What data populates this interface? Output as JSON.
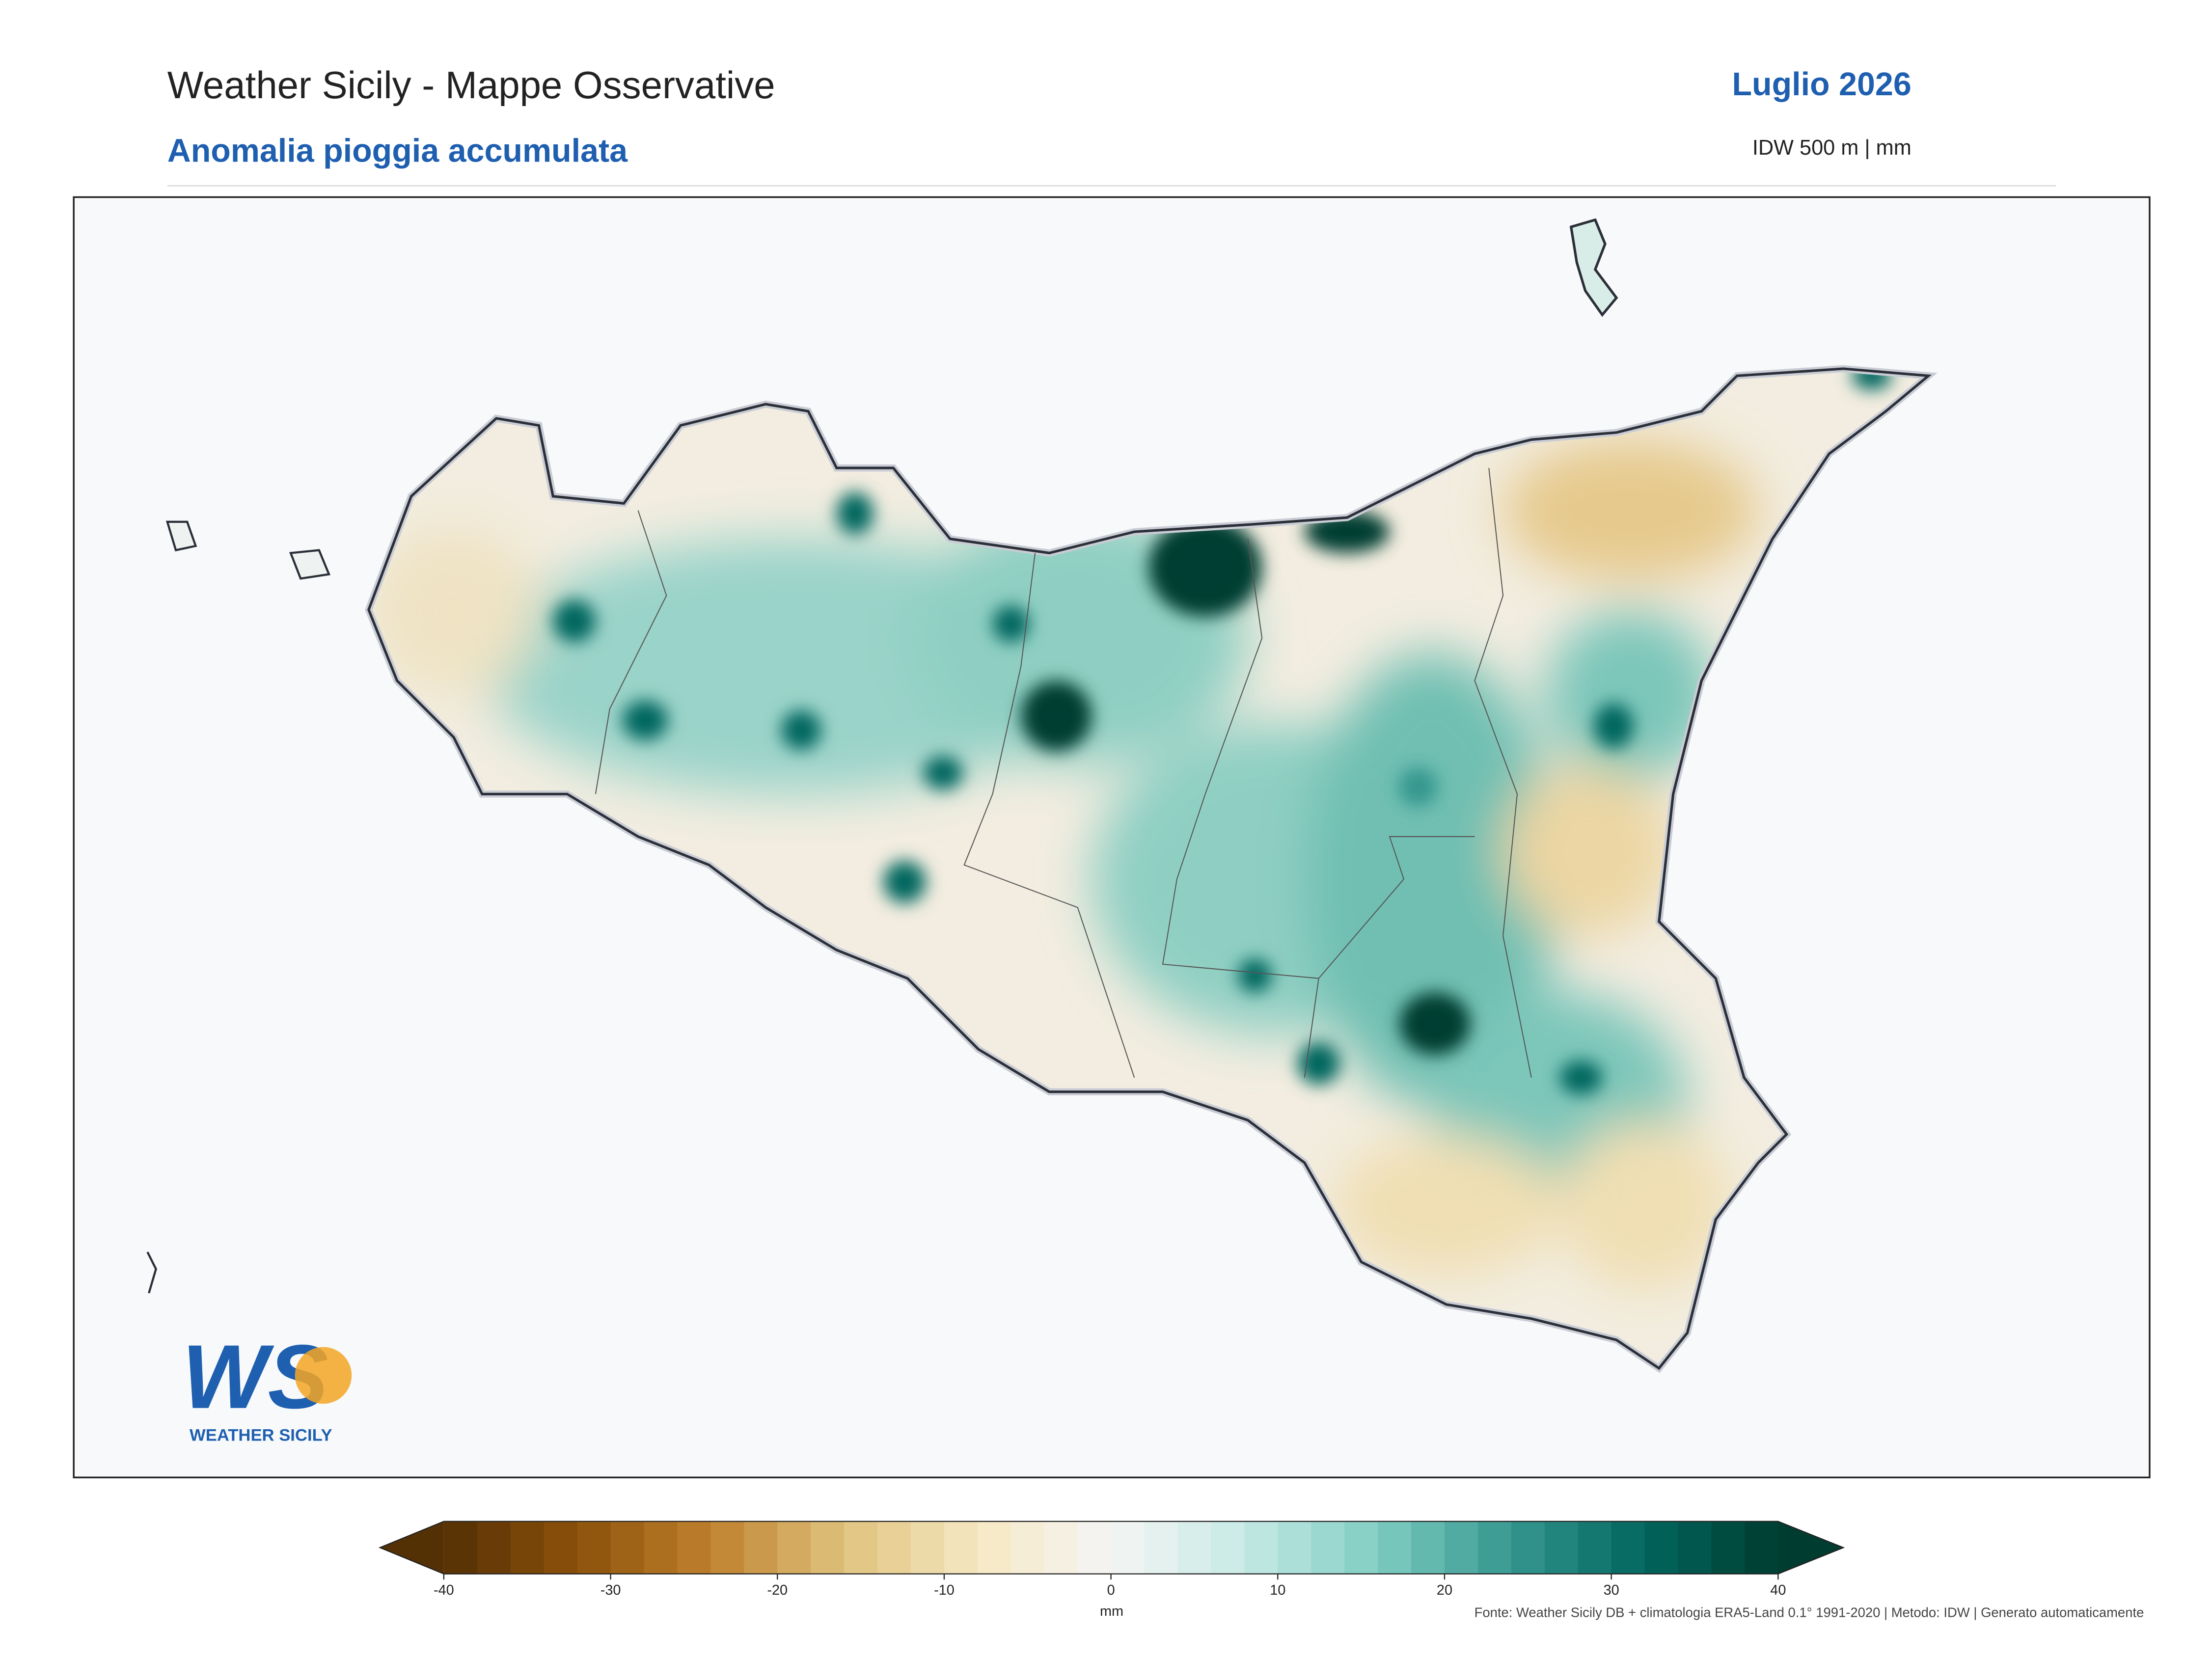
{
  "header": {
    "title": "Weather Sicily - Mappe Osservative",
    "subtitle": "Anomalia pioggia accumulata",
    "period": "Luglio 2026",
    "method": "IDW 500 m | mm"
  },
  "colorbar": {
    "label": "mm",
    "lim": [
      -40,
      40
    ],
    "ticks": [
      -40,
      -30,
      -20,
      -10,
      0,
      10,
      20,
      30,
      40
    ],
    "colormap": [
      "#543005",
      "#8c510a",
      "#bf812d",
      "#dfc27d",
      "#f6e8c3",
      "#f5f5f5",
      "#c7eae5",
      "#80cdc1",
      "#35978f",
      "#01665e",
      "#003c30"
    ],
    "steps": 40
  },
  "logo": {
    "letters": "WS",
    "text": "WEATHER SICILY"
  },
  "footer": {
    "source": "Fonte: Weather Sicily DB + climatologia ERA5-Land 0.1° 1991-2020 | Metodo: IDW | Generato automaticamente"
  }
}
